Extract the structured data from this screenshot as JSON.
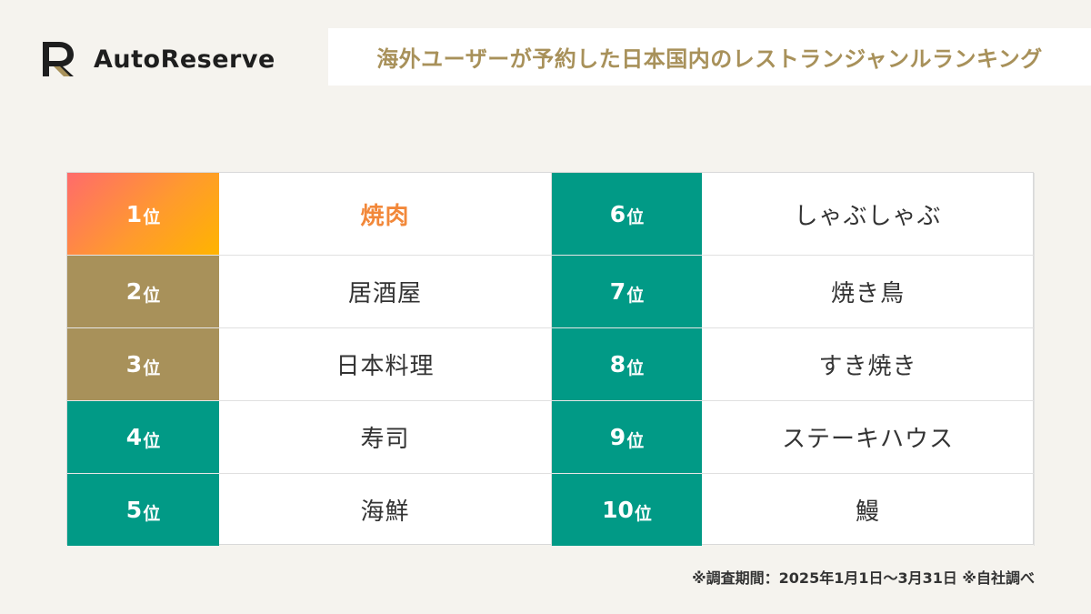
{
  "brand": {
    "name": "AutoReserve",
    "mark_color_dark": "#1e1e1e",
    "mark_color_gold": "#a8915a"
  },
  "title": "海外ユーザーが予約した日本国内のレストランジャンルランキング",
  "unit": "位",
  "colors": {
    "bronze": "#a8915a",
    "teal": "#019a86",
    "first_text": "#f2883a"
  },
  "rankings": [
    {
      "rank": "1",
      "genre": "焼肉"
    },
    {
      "rank": "2",
      "genre": "居酒屋"
    },
    {
      "rank": "3",
      "genre": "日本料理"
    },
    {
      "rank": "4",
      "genre": "寿司"
    },
    {
      "rank": "5",
      "genre": "海鮮"
    },
    {
      "rank": "6",
      "genre": "しゃぶしゃぶ"
    },
    {
      "rank": "7",
      "genre": "焼き鳥"
    },
    {
      "rank": "8",
      "genre": "すき焼き"
    },
    {
      "rank": "9",
      "genre": "ステーキハウス"
    },
    {
      "rank": "10",
      "genre": "鰻"
    }
  ],
  "note": "※調査期間：2025年1月1日〜3月31日 ※自社調べ"
}
